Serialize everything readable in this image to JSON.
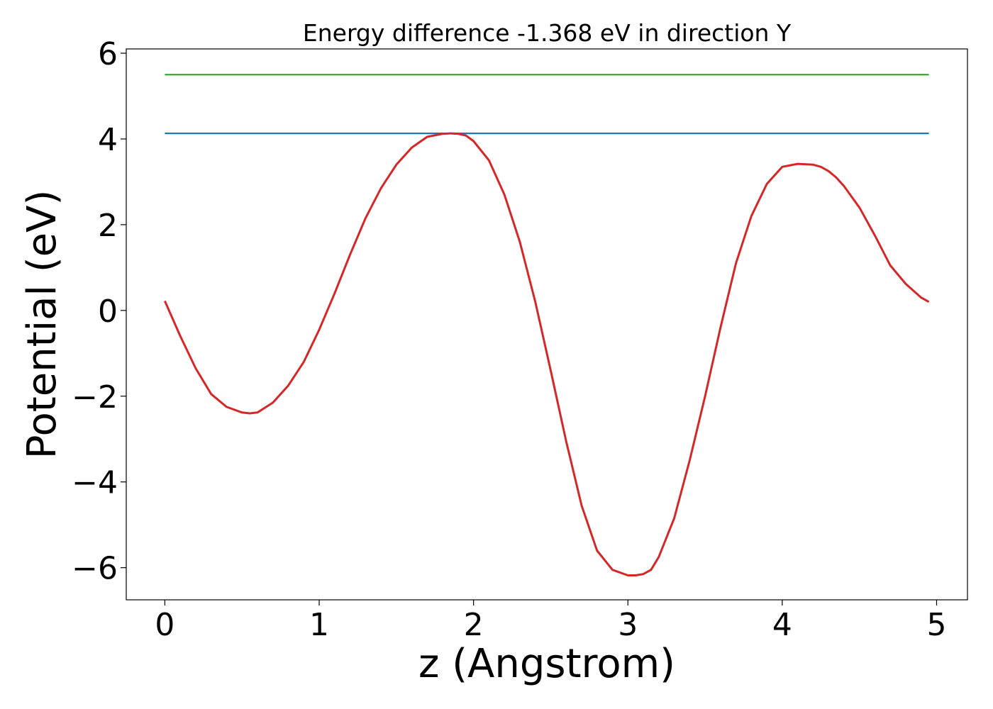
{
  "chart_data": {
    "type": "line",
    "title": "Energy difference -1.368 eV in direction Y",
    "xlabel": "z (Angstrom)",
    "ylabel": "Potential (eV)",
    "xlim": [
      -0.25,
      5.2
    ],
    "ylim": [
      -6.75,
      6.1
    ],
    "xticks": [
      0,
      1,
      2,
      3,
      4,
      5
    ],
    "yticks": [
      -6,
      -4,
      -2,
      0,
      2,
      4,
      6
    ],
    "xtick_labels": [
      "0",
      "1",
      "2",
      "3",
      "4",
      "5"
    ],
    "ytick_labels": [
      "−6",
      "−4",
      "−2",
      "0",
      "2",
      "4",
      "6"
    ],
    "grid": false,
    "series": [
      {
        "color": "#2ca02c",
        "x": [
          0,
          4.95
        ],
        "y": [
          5.5,
          5.5
        ]
      },
      {
        "color": "#1f77b4",
        "x": [
          0,
          4.95
        ],
        "y": [
          4.13,
          4.13
        ]
      },
      {
        "color": "#d62728",
        "x": [
          0,
          0.1,
          0.2,
          0.3,
          0.4,
          0.5,
          0.55,
          0.6,
          0.7,
          0.8,
          0.9,
          1.0,
          1.1,
          1.2,
          1.3,
          1.4,
          1.5,
          1.6,
          1.7,
          1.8,
          1.85,
          1.9,
          1.95,
          2.0,
          2.1,
          2.2,
          2.3,
          2.4,
          2.5,
          2.6,
          2.7,
          2.8,
          2.9,
          3.0,
          3.05,
          3.1,
          3.15,
          3.2,
          3.3,
          3.4,
          3.5,
          3.6,
          3.7,
          3.8,
          3.9,
          4.0,
          4.1,
          4.2,
          4.25,
          4.3,
          4.35,
          4.4,
          4.5,
          4.6,
          4.7,
          4.8,
          4.9,
          4.95
        ],
        "y": [
          0.22,
          -0.6,
          -1.35,
          -1.95,
          -2.25,
          -2.38,
          -2.4,
          -2.38,
          -2.15,
          -1.75,
          -1.2,
          -0.45,
          0.4,
          1.3,
          2.15,
          2.85,
          3.4,
          3.8,
          4.05,
          4.12,
          4.13,
          4.12,
          4.08,
          3.95,
          3.5,
          2.7,
          1.6,
          0.2,
          -1.4,
          -3.05,
          -4.55,
          -5.6,
          -6.05,
          -6.18,
          -6.18,
          -6.15,
          -6.05,
          -5.75,
          -4.85,
          -3.5,
          -2.0,
          -0.4,
          1.1,
          2.2,
          2.95,
          3.35,
          3.42,
          3.4,
          3.35,
          3.25,
          3.1,
          2.9,
          2.4,
          1.75,
          1.05,
          0.62,
          0.3,
          0.2
        ]
      }
    ]
  }
}
